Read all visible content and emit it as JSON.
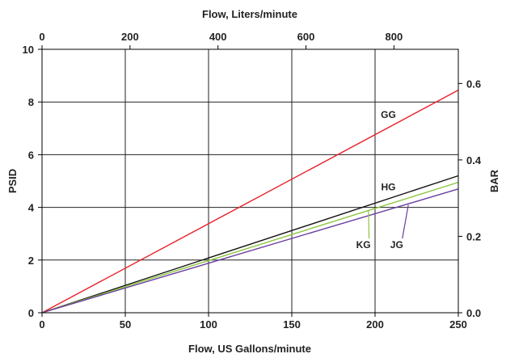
{
  "chart_data": {
    "type": "line",
    "xlabel": "Flow, US Gallons/minute",
    "ylabel": "PSID",
    "x2label": "Flow, Liters/minute",
    "y2label": "BAR",
    "xlim": [
      0,
      250
    ],
    "ylim": [
      0,
      10
    ],
    "x2lim": [
      0,
      946.35
    ],
    "y2lim": [
      0,
      0.6895
    ],
    "grid": true,
    "x_ticks": [
      "0",
      "50",
      "100",
      "150",
      "200",
      "250"
    ],
    "y_ticks": [
      "0",
      "2",
      "4",
      "6",
      "8",
      "10"
    ],
    "x2_ticks": [
      {
        "label": "0",
        "value": 0
      },
      {
        "label": "200",
        "value": 200
      },
      {
        "label": "400",
        "value": 400
      },
      {
        "label": "600",
        "value": 600
      },
      {
        "label": "800",
        "value": 800
      }
    ],
    "y2_ticks": [
      {
        "label": "0.0",
        "value": 0.0
      },
      {
        "label": "0.2",
        "value": 0.2
      },
      {
        "label": "0.4",
        "value": 0.4
      },
      {
        "label": "0.6",
        "value": 0.6
      }
    ],
    "series": [
      {
        "name": "GG",
        "color": "#e8212a",
        "x": [
          0,
          250
        ],
        "y": [
          0,
          8.45
        ]
      },
      {
        "name": "HG",
        "color": "#111111",
        "x": [
          0,
          250
        ],
        "y": [
          0,
          5.2
        ]
      },
      {
        "name": "KG",
        "color": "#8cc63f",
        "x": [
          0,
          250
        ],
        "y": [
          0,
          4.95
        ]
      },
      {
        "name": "JG",
        "color": "#6a3fa0",
        "x": [
          0,
          250
        ],
        "y": [
          0,
          4.7
        ]
      }
    ],
    "annotations": [
      {
        "series": "GG",
        "text": "GG",
        "leader": false,
        "label_x": 208,
        "label_y": 7.4
      },
      {
        "series": "HG",
        "text": "HG",
        "leader": false,
        "label_x": 208,
        "label_y": 4.65
      },
      {
        "series": "KG",
        "text": "KG",
        "leader": true,
        "label_x": 193,
        "label_y": 2.45,
        "point_x": 196,
        "point_y": 3.9
      },
      {
        "series": "JG",
        "text": "JG",
        "leader": true,
        "label_x": 213,
        "label_y": 2.45,
        "point_x": 220,
        "point_y": 4.1
      }
    ]
  }
}
